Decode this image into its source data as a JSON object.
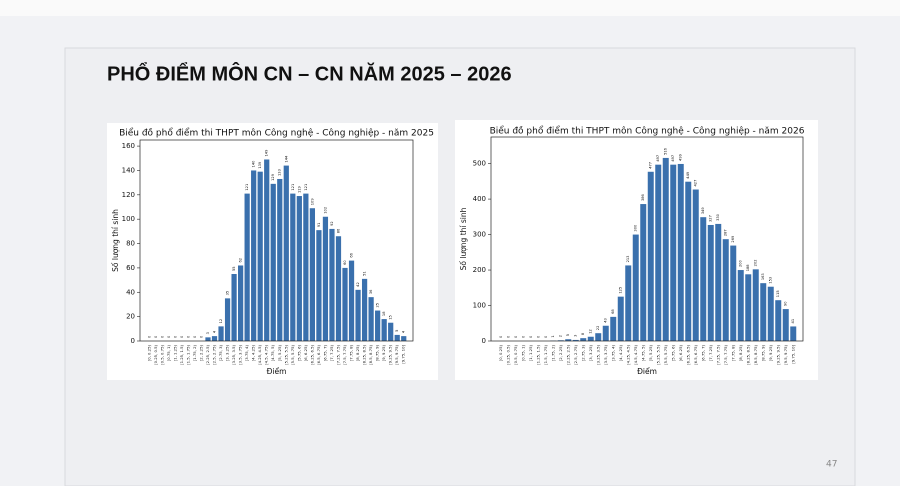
{
  "slide_title": "PHỔ ĐIỂM MÔN CN – CN NĂM 2025 – 2026",
  "page_number": "47",
  "chart_data": [
    {
      "type": "bar",
      "title": "Biểu đồ phổ điểm thi THPT môn Công nghệ - Công nghiệp - năm 2025",
      "x_label": "Điểm",
      "y_label": "Số lượng thí sinh",
      "color": "#3a70ad",
      "categories": [
        "[0, 0.25)",
        "[0.25, 0.5)",
        "[0.5, 0.75)",
        "[0.75, 1)",
        "[1, 1.25)",
        "[1.25, 1.5)",
        "[1.5, 1.75)",
        "[1.75, 2)",
        "[2, 2.25)",
        "[2.25, 2.5)",
        "[2.5, 2.75)",
        "[2.75, 3)",
        "[3, 3.25)",
        "[3.25, 3.5)",
        "[3.5, 3.75)",
        "[3.75, 4)",
        "[4, 4.25)",
        "[4.25, 4.5)",
        "[4.5, 4.75)",
        "[4.75, 5)",
        "[5, 5.25)",
        "[5.25, 5.5)",
        "[5.5, 5.75)",
        "[5.75, 6)",
        "[6, 6.25)",
        "[6.25, 6.5)",
        "[6.5, 6.75)",
        "[6.75, 7)",
        "[7, 7.25)",
        "[7.25, 7.5)",
        "[7.5, 7.75)",
        "[7.75, 8)",
        "[8, 8.25)",
        "[8.25, 8.5)",
        "[8.5, 8.75)",
        "[8.75, 9)",
        "[9, 9.25)",
        "[9.25, 9.5)",
        "[9.5, 9.75)",
        "[9.75, 10]"
      ],
      "values": [
        0,
        0,
        0,
        0,
        0,
        0,
        0,
        0,
        0,
        3,
        4,
        12,
        35,
        55,
        62,
        121,
        140,
        139,
        149,
        129,
        133,
        144,
        121,
        119,
        121,
        109,
        91,
        102,
        92,
        86,
        60,
        66,
        42,
        51,
        36,
        25,
        18,
        15,
        5,
        4
      ],
      "ylim": [
        0,
        165
      ],
      "yticks": [
        0,
        20,
        40,
        60,
        80,
        100,
        120,
        140,
        160
      ]
    },
    {
      "type": "bar",
      "title": "Biểu đồ phổ điểm thi THPT môn Công nghệ - Công nghiệp - năm 2026",
      "x_label": "Điểm",
      "y_label": "Số lượng thí sinh",
      "color": "#3a70ad",
      "categories": [
        "[0, 0.25)",
        "[0.25, 0.5)",
        "[0.5, 0.75)",
        "[0.75, 1)",
        "[1, 1.25)",
        "[1.25, 1.5)",
        "[1.5, 1.75)",
        "[1.75, 2)",
        "[2, 2.25)",
        "[2.25, 2.5)",
        "[2.5, 2.75)",
        "[2.75, 3)",
        "[3, 3.25)",
        "[3.25, 3.5)",
        "[3.5, 3.75)",
        "[3.75, 4)",
        "[4, 4.25)",
        "[4.25, 4.5)",
        "[4.5, 4.75)",
        "[4.75, 5)",
        "[5, 5.25)",
        "[5.25, 5.5)",
        "[5.5, 5.75)",
        "[5.75, 6)",
        "[6, 6.25)",
        "[6.25, 6.5)",
        "[6.5, 6.75)",
        "[6.75, 7)",
        "[7, 7.25)",
        "[7.25, 7.5)",
        "[7.5, 7.75)",
        "[7.75, 8)",
        "[8, 8.25)",
        "[8.25, 8.5)",
        "[8.5, 8.75)",
        "[8.75, 9)",
        "[9, 9.25)",
        "[9.25, 9.5)",
        "[9.5, 9.75)",
        "[9.75, 10]"
      ],
      "values": [
        0,
        0,
        0,
        0,
        0,
        0,
        0,
        1,
        2,
        5,
        3,
        8,
        12,
        22,
        43,
        68,
        125,
        213,
        300,
        386,
        477,
        497,
        516,
        497,
        499,
        449,
        427,
        349,
        327,
        330,
        287,
        269,
        200,
        188,
        202,
        163,
        153,
        115,
        90,
        41
      ],
      "ylim": [
        0,
        575
      ],
      "yticks": [
        0,
        100,
        200,
        300,
        400,
        500
      ]
    }
  ]
}
